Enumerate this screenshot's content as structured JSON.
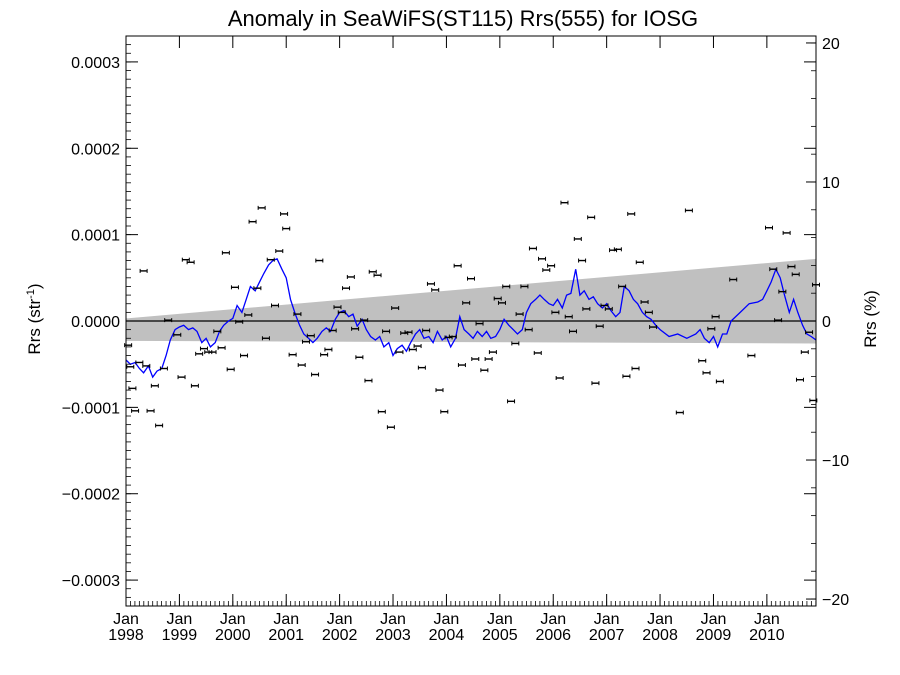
{
  "chart_data": {
    "type": "scatter",
    "title": "Anomaly in SeaWiFS(ST115) Rrs(555) for IOSG",
    "ylabel": "Rrs (str",
    "ylabel_sup": "-1",
    "ylabel_close": ")",
    "y2label": "Rrs (%)",
    "ylim": [
      -0.00033,
      0.00033
    ],
    "y2lim": [
      -20.5,
      20.5
    ],
    "xlim": [
      1998.0,
      2010.92
    ],
    "yticks": [
      {
        "v": 0.0003,
        "label": "0.0003"
      },
      {
        "v": 0.0002,
        "label": "0.0002"
      },
      {
        "v": 0.0001,
        "label": "0.0001"
      },
      {
        "v": 0.0,
        "label": "0.0000"
      },
      {
        "v": -0.0001,
        "label": "−0.0001"
      },
      {
        "v": -0.0002,
        "label": "−0.0002"
      },
      {
        "v": -0.0003,
        "label": "−0.0003"
      }
    ],
    "y2ticks": [
      {
        "v": 20,
        "label": "20"
      },
      {
        "v": 10,
        "label": "10"
      },
      {
        "v": 0,
        "label": "0"
      },
      {
        "v": -10,
        "label": "−10"
      },
      {
        "v": -20,
        "label": "−20"
      }
    ],
    "xticks": [
      {
        "v": 1998,
        "label1": "Jan",
        "label2": "1998"
      },
      {
        "v": 1999,
        "label1": "Jan",
        "label2": "1999"
      },
      {
        "v": 2000,
        "label1": "Jan",
        "label2": "2000"
      },
      {
        "v": 2001,
        "label1": "Jan",
        "label2": "2001"
      },
      {
        "v": 2002,
        "label1": "Jan",
        "label2": "2002"
      },
      {
        "v": 2003,
        "label1": "Jan",
        "label2": "2003"
      },
      {
        "v": 2004,
        "label1": "Jan",
        "label2": "2004"
      },
      {
        "v": 2005,
        "label1": "Jan",
        "label2": "2005"
      },
      {
        "v": 2006,
        "label1": "Jan",
        "label2": "2006"
      },
      {
        "v": 2007,
        "label1": "Jan",
        "label2": "2007"
      },
      {
        "v": 2008,
        "label1": "Jan",
        "label2": "2008"
      },
      {
        "v": 2009,
        "label1": "Jan",
        "label2": "2009"
      },
      {
        "v": 2010,
        "label1": "Jan",
        "label2": "2010"
      }
    ],
    "trend_band": {
      "color": "#c0c0c0",
      "start": [
        1998.0,
        3e-06,
        -2.3e-05
      ],
      "end": [
        2010.92,
        7.2e-05,
        -2.6e-05
      ]
    },
    "zero_line": 0,
    "colors": {
      "points": "#000000",
      "smooth_line": "#0000ff",
      "band": "#c0c0c0",
      "zero_line": "#000000"
    },
    "points": [
      [
        1998.04,
        -2.8e-05
      ],
      [
        1998.08,
        -5.3e-05
      ],
      [
        1998.12,
        -7.8e-05
      ],
      [
        1998.17,
        -0.000104
      ],
      [
        1998.25,
        -4.8e-05
      ],
      [
        1998.33,
        5.8e-05
      ],
      [
        1998.38,
        -5.2e-05
      ],
      [
        1998.46,
        -0.000104
      ],
      [
        1998.54,
        -7.5e-05
      ],
      [
        1998.62,
        -0.000121
      ],
      [
        1998.71,
        -5.5e-05
      ],
      [
        1998.79,
        1e-06
      ],
      [
        1998.96,
        -1.6e-05
      ],
      [
        1999.04,
        -6.5e-05
      ],
      [
        1999.12,
        7.1e-05
      ],
      [
        1999.21,
        6.8e-05
      ],
      [
        1999.29,
        -7.5e-05
      ],
      [
        1999.37,
        -3.8e-05
      ],
      [
        1999.46,
        -3.2e-05
      ],
      [
        1999.54,
        -3.6e-05
      ],
      [
        1999.62,
        -3.6e-05
      ],
      [
        1999.71,
        -1.2e-05
      ],
      [
        1999.79,
        -3.1e-05
      ],
      [
        1999.87,
        7.9e-05
      ],
      [
        1999.96,
        -5.6e-05
      ],
      [
        2000.04,
        3.9e-05
      ],
      [
        2000.12,
        -1e-06
      ],
      [
        2000.21,
        -4e-05
      ],
      [
        2000.29,
        7e-06
      ],
      [
        2000.37,
        0.000115
      ],
      [
        2000.46,
        3.8e-05
      ],
      [
        2000.54,
        0.000131
      ],
      [
        2000.62,
        -2e-05
      ],
      [
        2000.71,
        7.1e-05
      ],
      [
        2000.79,
        1.8e-05
      ],
      [
        2000.87,
        8.1e-05
      ],
      [
        2000.96,
        0.000124
      ],
      [
        2001.0,
        0.000107
      ],
      [
        2001.12,
        -3.9e-05
      ],
      [
        2001.21,
        8e-06
      ],
      [
        2001.29,
        -5.1e-05
      ],
      [
        2001.37,
        -2.4e-05
      ],
      [
        2001.46,
        -1.7e-05
      ],
      [
        2001.54,
        -6.2e-05
      ],
      [
        2001.62,
        7e-05
      ],
      [
        2001.71,
        -3.9e-05
      ],
      [
        2001.79,
        -3.3e-05
      ],
      [
        2001.87,
        -1.1e-05
      ],
      [
        2001.96,
        1.6e-05
      ],
      [
        2002.04,
        1e-05
      ],
      [
        2002.12,
        3.8e-05
      ],
      [
        2002.21,
        5.1e-05
      ],
      [
        2002.29,
        -9e-06
      ],
      [
        2002.37,
        -4.2e-05
      ],
      [
        2002.46,
        1e-06
      ],
      [
        2002.54,
        -6.9e-05
      ],
      [
        2002.62,
        5.7e-05
      ],
      [
        2002.71,
        5.3e-05
      ],
      [
        2002.79,
        -0.000105
      ],
      [
        2002.87,
        -1.2e-05
      ],
      [
        2002.96,
        -0.000123
      ],
      [
        2003.04,
        1.5e-05
      ],
      [
        2003.12,
        -3.6e-05
      ],
      [
        2003.21,
        -1.4e-05
      ],
      [
        2003.29,
        -1.3e-05
      ],
      [
        2003.37,
        -3.3e-05
      ],
      [
        2003.46,
        -2.9e-05
      ],
      [
        2003.54,
        -5.4e-05
      ],
      [
        2003.62,
        -1.1e-05
      ],
      [
        2003.71,
        4.3e-05
      ],
      [
        2003.79,
        3.6e-05
      ],
      [
        2003.87,
        -8e-05
      ],
      [
        2003.96,
        -0.000105
      ],
      [
        2004.04,
        -1.9e-05
      ],
      [
        2004.12,
        -1.8e-05
      ],
      [
        2004.21,
        6.4e-05
      ],
      [
        2004.29,
        -5.1e-05
      ],
      [
        2004.37,
        2.1e-05
      ],
      [
        2004.46,
        4.9e-05
      ],
      [
        2004.54,
        -4.4e-05
      ],
      [
        2004.62,
        -3e-06
      ],
      [
        2004.71,
        -5.7e-05
      ],
      [
        2004.79,
        -4.4e-05
      ],
      [
        2004.87,
        -3.6e-05
      ],
      [
        2004.96,
        2.6e-05
      ],
      [
        2005.04,
        2.1e-05
      ],
      [
        2005.12,
        4e-05
      ],
      [
        2005.21,
        -9.3e-05
      ],
      [
        2005.29,
        -2.6e-05
      ],
      [
        2005.37,
        8e-06
      ],
      [
        2005.46,
        4e-05
      ],
      [
        2005.54,
        -1e-05
      ],
      [
        2005.62,
        8.4e-05
      ],
      [
        2005.71,
        -3.7e-05
      ],
      [
        2005.79,
        7.2e-05
      ],
      [
        2005.87,
        5.9e-05
      ],
      [
        2005.96,
        6.4e-05
      ],
      [
        2006.04,
        1e-05
      ],
      [
        2006.12,
        -6.6e-05
      ],
      [
        2006.21,
        0.000137
      ],
      [
        2006.29,
        5e-06
      ],
      [
        2006.37,
        -1.2e-05
      ],
      [
        2006.46,
        9.5e-05
      ],
      [
        2006.54,
        7e-05
      ],
      [
        2006.62,
        1.4e-05
      ],
      [
        2006.71,
        0.00012
      ],
      [
        2006.79,
        -7.2e-05
      ],
      [
        2006.87,
        -6e-06
      ],
      [
        2006.96,
        1.8e-05
      ],
      [
        2007.04,
        1.4e-05
      ],
      [
        2007.12,
        8.2e-05
      ],
      [
        2007.21,
        8.3e-05
      ],
      [
        2007.29,
        4e-05
      ],
      [
        2007.37,
        -6.4e-05
      ],
      [
        2007.46,
        0.000124
      ],
      [
        2007.54,
        -5.5e-05
      ],
      [
        2007.62,
        6.8e-05
      ],
      [
        2007.71,
        2.2e-05
      ],
      [
        2007.79,
        1e-05
      ],
      [
        2007.87,
        -7e-06
      ],
      [
        2008.37,
        -0.000106
      ],
      [
        2008.54,
        0.000128
      ],
      [
        2008.79,
        -4.6e-05
      ],
      [
        2008.87,
        -6e-05
      ],
      [
        2008.96,
        -9e-06
      ],
      [
        2009.04,
        5e-06
      ],
      [
        2009.12,
        -7e-05
      ],
      [
        2009.37,
        4.8e-05
      ],
      [
        2009.71,
        -4e-05
      ],
      [
        2010.04,
        0.000108
      ],
      [
        2010.12,
        6e-05
      ],
      [
        2010.21,
        1e-06
      ],
      [
        2010.29,
        3.4e-05
      ],
      [
        2010.37,
        0.000102
      ],
      [
        2010.46,
        6.3e-05
      ],
      [
        2010.54,
        5.4e-05
      ],
      [
        2010.62,
        -6.8e-05
      ],
      [
        2010.71,
        -3.6e-05
      ],
      [
        2010.79,
        -1.3e-05
      ],
      [
        2010.87,
        -9.2e-05
      ],
      [
        2010.92,
        4.2e-05
      ]
    ],
    "smooth": [
      [
        1998.0,
        -4.5e-05
      ],
      [
        1998.08,
        -5e-05
      ],
      [
        1998.17,
        -4.8e-05
      ],
      [
        1998.25,
        -5.5e-05
      ],
      [
        1998.33,
        -6e-05
      ],
      [
        1998.42,
        -5.2e-05
      ],
      [
        1998.5,
        -6.5e-05
      ],
      [
        1998.58,
        -5.8e-05
      ],
      [
        1998.67,
        -5.5e-05
      ],
      [
        1998.75,
        -4e-05
      ],
      [
        1998.83,
        -2.2e-05
      ],
      [
        1998.92,
        -1e-05
      ],
      [
        1999.0,
        -7e-06
      ],
      [
        1999.08,
        -5e-06
      ],
      [
        1999.17,
        -1e-05
      ],
      [
        1999.25,
        -8e-06
      ],
      [
        1999.33,
        -1.2e-05
      ],
      [
        1999.42,
        -2.5e-05
      ],
      [
        1999.5,
        -2e-05
      ],
      [
        1999.58,
        -3e-05
      ],
      [
        1999.67,
        -2.5e-05
      ],
      [
        1999.75,
        -1.2e-05
      ],
      [
        1999.83,
        -5e-06
      ],
      [
        1999.92,
        0.0
      ],
      [
        2000.0,
        3e-06
      ],
      [
        2000.08,
        1.8e-05
      ],
      [
        2000.17,
        1e-05
      ],
      [
        2000.25,
        2.5e-05
      ],
      [
        2000.33,
        4e-05
      ],
      [
        2000.42,
        3.5e-05
      ],
      [
        2000.5,
        4.5e-05
      ],
      [
        2000.58,
        5.5e-05
      ],
      [
        2000.67,
        6.5e-05
      ],
      [
        2000.75,
        7e-05
      ],
      [
        2000.83,
        7.2e-05
      ],
      [
        2000.92,
        6e-05
      ],
      [
        2001.0,
        5e-05
      ],
      [
        2001.08,
        2.5e-05
      ],
      [
        2001.17,
        8e-06
      ],
      [
        2001.25,
        -5e-06
      ],
      [
        2001.33,
        -1.5e-05
      ],
      [
        2001.42,
        -2e-05
      ],
      [
        2001.5,
        -2.5e-05
      ],
      [
        2001.58,
        -2e-05
      ],
      [
        2001.67,
        -1.2e-05
      ],
      [
        2001.75,
        -8e-06
      ],
      [
        2001.83,
        -1.2e-05
      ],
      [
        2001.92,
        2e-06
      ],
      [
        2002.0,
        1e-05
      ],
      [
        2002.08,
        1.2e-05
      ],
      [
        2002.17,
        5e-06
      ],
      [
        2002.25,
        8e-06
      ],
      [
        2002.33,
        -6e-06
      ],
      [
        2002.42,
        2e-06
      ],
      [
        2002.5,
        -1e-05
      ],
      [
        2002.58,
        -1.8e-05
      ],
      [
        2002.67,
        -2.2e-05
      ],
      [
        2002.75,
        -1.8e-05
      ],
      [
        2002.83,
        -3e-05
      ],
      [
        2002.92,
        -2.5e-05
      ],
      [
        2003.0,
        -4e-05
      ],
      [
        2003.08,
        -3.2e-05
      ],
      [
        2003.17,
        -2.8e-05
      ],
      [
        2003.25,
        -3.5e-05
      ],
      [
        2003.33,
        -2.5e-05
      ],
      [
        2003.42,
        -1.5e-05
      ],
      [
        2003.5,
        -1e-05
      ],
      [
        2003.58,
        -2e-05
      ],
      [
        2003.67,
        -1.8e-05
      ],
      [
        2003.75,
        -2.5e-05
      ],
      [
        2003.83,
        -1.2e-05
      ],
      [
        2003.92,
        -2.2e-05
      ],
      [
        2004.0,
        -1.8e-05
      ],
      [
        2004.08,
        -3e-05
      ],
      [
        2004.17,
        -2e-05
      ],
      [
        2004.25,
        5e-06
      ],
      [
        2004.33,
        -1e-05
      ],
      [
        2004.42,
        -1.5e-05
      ],
      [
        2004.5,
        -2e-05
      ],
      [
        2004.58,
        -1.2e-05
      ],
      [
        2004.67,
        -1.8e-05
      ],
      [
        2004.75,
        -1.2e-05
      ],
      [
        2004.83,
        -2e-05
      ],
      [
        2004.92,
        -1.8e-05
      ],
      [
        2005.0,
        -1e-05
      ],
      [
        2005.08,
        2e-06
      ],
      [
        2005.17,
        -5e-06
      ],
      [
        2005.25,
        -1e-05
      ],
      [
        2005.33,
        -1.5e-05
      ],
      [
        2005.42,
        -1e-05
      ],
      [
        2005.5,
        1e-05
      ],
      [
        2005.58,
        2e-05
      ],
      [
        2005.67,
        2.5e-05
      ],
      [
        2005.75,
        3e-05
      ],
      [
        2005.83,
        2.5e-05
      ],
      [
        2005.92,
        2e-05
      ],
      [
        2006.0,
        1.8e-05
      ],
      [
        2006.08,
        2.5e-05
      ],
      [
        2006.17,
        1.5e-05
      ],
      [
        2006.25,
        3e-05
      ],
      [
        2006.33,
        3.2e-05
      ],
      [
        2006.42,
        6e-05
      ],
      [
        2006.5,
        3e-05
      ],
      [
        2006.58,
        3.5e-05
      ],
      [
        2006.67,
        2.5e-05
      ],
      [
        2006.75,
        2.8e-05
      ],
      [
        2006.83,
        2e-05
      ],
      [
        2006.92,
        1.5e-05
      ],
      [
        2007.0,
        2e-05
      ],
      [
        2007.08,
        1.2e-05
      ],
      [
        2007.17,
        5e-06
      ],
      [
        2007.25,
        1e-05
      ],
      [
        2007.33,
        4e-05
      ],
      [
        2007.42,
        3.5e-05
      ],
      [
        2007.5,
        2.5e-05
      ],
      [
        2007.58,
        2e-05
      ],
      [
        2007.67,
        1e-05
      ],
      [
        2007.75,
        5e-06
      ],
      [
        2007.83,
        2e-06
      ],
      [
        2007.92,
        -5e-06
      ],
      [
        2008.0,
        -1e-05
      ],
      [
        2008.17,
        -1.8e-05
      ],
      [
        2008.33,
        -1.5e-05
      ],
      [
        2008.5,
        -2e-05
      ],
      [
        2008.67,
        -1.5e-05
      ],
      [
        2008.75,
        -1e-05
      ],
      [
        2008.83,
        -2e-05
      ],
      [
        2008.92,
        -2.5e-05
      ],
      [
        2009.0,
        -1.8e-05
      ],
      [
        2009.08,
        -3e-05
      ],
      [
        2009.17,
        -1.5e-05
      ],
      [
        2009.25,
        -1.5e-05
      ],
      [
        2009.33,
        0.0
      ],
      [
        2009.5,
        1e-05
      ],
      [
        2009.67,
        2e-05
      ],
      [
        2009.83,
        2.2e-05
      ],
      [
        2009.92,
        2.5e-05
      ],
      [
        2010.0,
        3.5e-05
      ],
      [
        2010.08,
        4.5e-05
      ],
      [
        2010.17,
        6e-05
      ],
      [
        2010.25,
        5e-05
      ],
      [
        2010.33,
        3e-05
      ],
      [
        2010.42,
        1e-05
      ],
      [
        2010.5,
        2.5e-05
      ],
      [
        2010.58,
        1e-05
      ],
      [
        2010.67,
        -5e-06
      ],
      [
        2010.75,
        -1.5e-05
      ],
      [
        2010.83,
        -1.8e-05
      ],
      [
        2010.92,
        -2.2e-05
      ]
    ]
  }
}
